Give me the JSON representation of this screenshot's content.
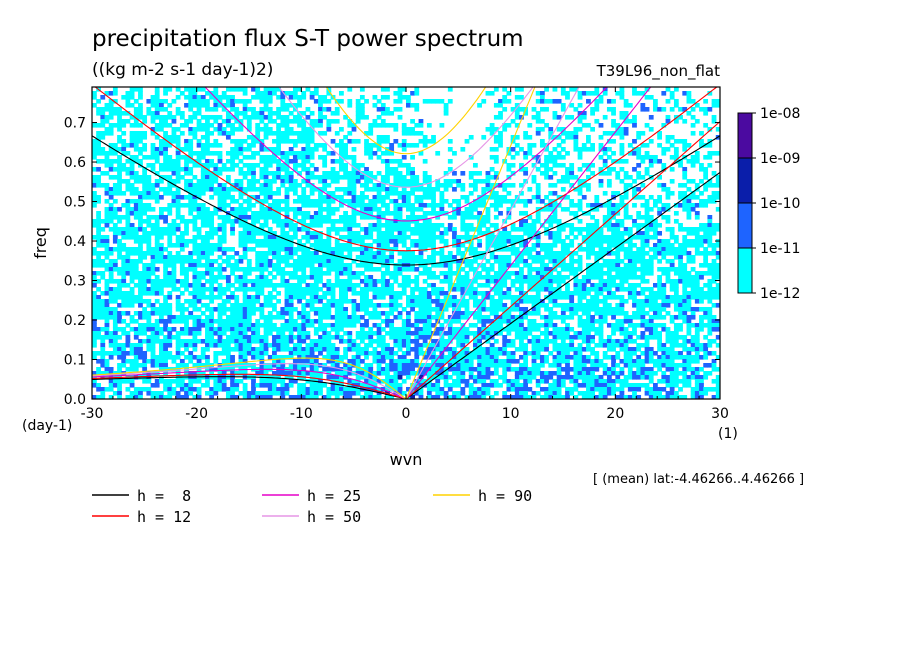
{
  "chart_data": {
    "type": "heatmap",
    "title": "precipitation flux S-T power spectrum",
    "subtitle": "((kg m-2 s-1 day-1)2)",
    "experiment": "T39L96_non_flat",
    "xlabel": "wvn",
    "ylabel": "freq",
    "x_unit": "(1)",
    "y_unit": "(day-1)",
    "xlim": [
      -30,
      30
    ],
    "ylim": [
      0,
      0.79
    ],
    "x_ticks": [
      "-30",
      "-20",
      "-10",
      "0",
      "10",
      "20",
      "30"
    ],
    "x_tick_values": [
      -30,
      -20,
      -10,
      0,
      10,
      20,
      30
    ],
    "y_ticks": [
      "0.0",
      "0.1",
      "0.2",
      "0.3",
      "0.4",
      "0.5",
      "0.6",
      "0.7"
    ],
    "y_tick_values": [
      0,
      0.1,
      0.2,
      0.3,
      0.4,
      0.5,
      0.6,
      0.7
    ],
    "annotation": "[ (mean) lat:-4.46266..4.46266 ]",
    "colorbar": {
      "labels": [
        "1e-08",
        "1e-09",
        "1e-10",
        "1e-11",
        "1e-12"
      ],
      "levels": [
        {
          "range": "1e-12..1e-11",
          "color": "#00ffff"
        },
        {
          "range": "1e-11..1e-10",
          "color": "#1e64ff"
        },
        {
          "range": "1e-10..1e-09",
          "color": "#0a1eaa"
        },
        {
          "range": "1e-09..1e-08",
          "color": "#4b0aa0"
        }
      ]
    },
    "series": [
      {
        "name": "h =  8",
        "color": "#000000"
      },
      {
        "name": "h = 12",
        "color": "#ff0000"
      },
      {
        "name": "h = 25",
        "color": "#e600c8"
      },
      {
        "name": "h = 50",
        "color": "#e696e6"
      },
      {
        "name": "h = 90",
        "color": "#ffd200"
      }
    ],
    "equivalent_depth_m": [
      8,
      12,
      25,
      50,
      90
    ]
  }
}
